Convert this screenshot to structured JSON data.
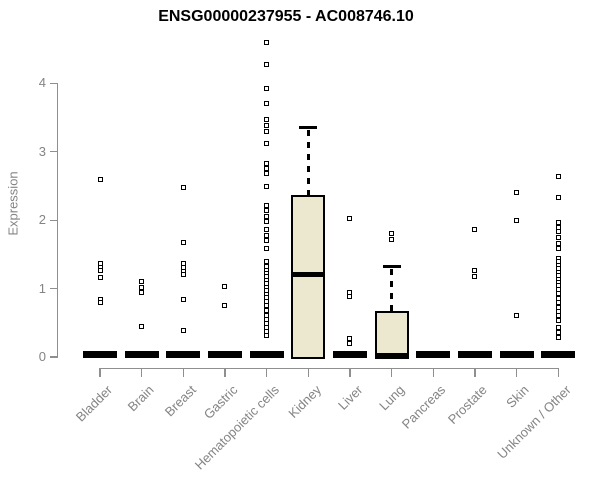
{
  "chart_data": {
    "type": "boxplot",
    "title": "ENSG00000237955 - AC008746.10",
    "xlabel": "",
    "ylabel": "Expression",
    "ylim": [
      0,
      4.6
    ],
    "yticks": [
      0,
      1,
      2,
      3,
      4
    ],
    "grid": false,
    "legend": null,
    "categories": [
      "Bladder",
      "Brain",
      "Breast",
      "Gastric",
      "Hematopoietic cells",
      "Kidney",
      "Liver",
      "Lung",
      "Pancreas",
      "Prostate",
      "Skin",
      "Unknown / Other"
    ],
    "series": [
      {
        "category": "Bladder",
        "q1": 0,
        "median": 0,
        "q3": 0,
        "whisker_low": 0,
        "whisker_high": 0,
        "outliers": [
          2.6,
          1.37,
          1.31,
          1.26,
          1.16,
          0.84,
          0.79
        ]
      },
      {
        "category": "Brain",
        "q1": 0,
        "median": 0,
        "q3": 0,
        "whisker_low": 0,
        "whisker_high": 0,
        "outliers": [
          1.1,
          1.01,
          0.95,
          0.45
        ]
      },
      {
        "category": "Breast",
        "q1": 0,
        "median": 0,
        "q3": 0,
        "whisker_low": 0,
        "whisker_high": 0,
        "outliers": [
          2.48,
          1.68,
          1.37,
          1.31,
          1.25,
          1.2,
          0.84,
          0.39
        ]
      },
      {
        "category": "Gastric",
        "q1": 0,
        "median": 0,
        "q3": 0,
        "whisker_low": 0,
        "whisker_high": 0,
        "outliers": [
          1.03,
          0.75
        ]
      },
      {
        "category": "Hematopoietic cells",
        "q1": 0,
        "median": 0,
        "q3": 0,
        "whisker_low": 0,
        "whisker_high": 0,
        "outliers": [
          4.6,
          4.28,
          3.92,
          3.7,
          3.47,
          3.38,
          3.29,
          3.12,
          2.83,
          2.75,
          2.68,
          2.49,
          2.22,
          2.14,
          2.06,
          1.98,
          1.86,
          1.78,
          1.7,
          1.58,
          1.4,
          1.33,
          1.27,
          1.22,
          1.17,
          1.12,
          1.07,
          1.02,
          0.97,
          0.92,
          0.87,
          0.81,
          0.75,
          0.68,
          0.61,
          0.55,
          0.49,
          0.43,
          0.37,
          0.31
        ]
      },
      {
        "category": "Kidney",
        "q1": 0,
        "median": 1.21,
        "q3": 2.36,
        "whisker_low": 0,
        "whisker_high": 3.35,
        "outliers": []
      },
      {
        "category": "Liver",
        "q1": 0,
        "median": 0,
        "q3": 0,
        "whisker_low": 0,
        "whisker_high": 0,
        "outliers": [
          2.02,
          0.95,
          0.88,
          0.27,
          0.2
        ]
      },
      {
        "category": "Lung",
        "q1": 0,
        "median": 0,
        "q3": 0.66,
        "whisker_low": 0,
        "whisker_high": 1.32,
        "outliers": [
          1.8,
          1.72
        ]
      },
      {
        "category": "Pancreas",
        "q1": 0,
        "median": 0,
        "q3": 0,
        "whisker_low": 0,
        "whisker_high": 0,
        "outliers": []
      },
      {
        "category": "Prostate",
        "q1": 0,
        "median": 0,
        "q3": 0,
        "whisker_low": 0,
        "whisker_high": 0,
        "outliers": [
          1.87,
          1.26,
          1.18
        ]
      },
      {
        "category": "Skin",
        "q1": 0,
        "median": 0,
        "q3": 0,
        "whisker_low": 0,
        "whisker_high": 0,
        "outliers": [
          2.41,
          1.99,
          0.6
        ]
      },
      {
        "category": "Unknown / Other",
        "q1": 0,
        "median": 0,
        "q3": 0,
        "whisker_low": 0,
        "whisker_high": 0,
        "outliers": [
          2.64,
          2.33,
          1.97,
          1.9,
          1.83,
          1.74,
          1.66,
          1.58,
          1.44,
          1.39,
          1.34,
          1.29,
          1.24,
          1.19,
          1.14,
          1.09,
          1.04,
          0.99,
          0.93,
          0.86,
          0.79,
          0.72,
          0.66,
          0.6,
          0.54,
          0.43,
          0.36,
          0.29
        ]
      }
    ],
    "colors": {
      "box_fill": "#ece7cf",
      "box_border": "#000000",
      "median": "#000000",
      "outlier": "#000000",
      "axis": "#8f8f8f",
      "tick_text": "#848484",
      "title_text": "#000000",
      "background": "#ffffff"
    }
  }
}
